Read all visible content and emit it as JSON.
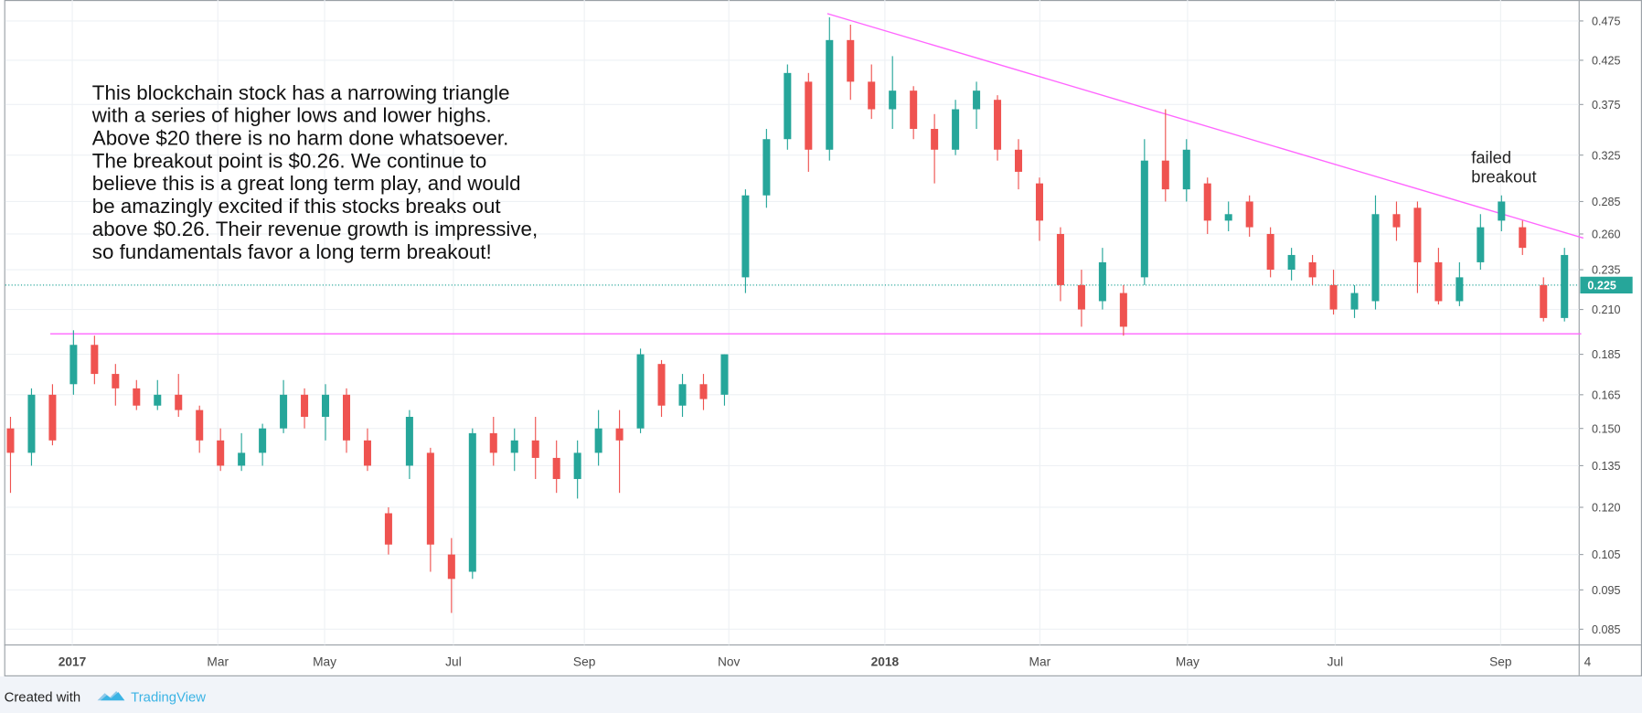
{
  "chart_data": {
    "type": "candlestick",
    "log_scale": true,
    "grid": true,
    "up_color": "#26a69a",
    "down_color": "#ef5350",
    "line_color": "#ff66ff",
    "ylim": [
      0.0813,
      0.504
    ],
    "yticks": [
      0.475,
      0.425,
      0.375,
      0.325,
      0.285,
      {
        "value": 0.26,
        "label": "0.260"
      },
      0.235,
      {
        "value": 0.21,
        "label": "0.210"
      },
      0.185,
      0.165,
      {
        "value": 0.15,
        "label": "0.150"
      },
      0.135,
      {
        "value": 0.12,
        "label": "0.120"
      },
      0.105,
      0.095,
      0.085
    ],
    "x_labels": [
      "2017",
      "Mar",
      "May",
      "Jul",
      "Sep",
      "Nov",
      "2018",
      "Mar",
      "May",
      "Jul",
      "Sep",
      "4"
    ],
    "open": [
      0.15,
      0.14,
      0.165,
      0.17,
      0.19,
      0.175,
      0.168,
      0.16,
      0.165,
      0.158,
      0.145,
      0.135,
      0.14,
      0.15,
      0.165,
      0.155,
      0.165,
      0.145,
      0.118,
      0.135,
      0.14,
      0.105,
      0.1,
      0.148,
      0.14,
      0.145,
      0.138,
      0.13,
      0.14,
      0.15,
      0.15,
      0.18,
      0.16,
      0.17,
      0.165,
      0.23,
      0.29,
      0.34,
      0.4,
      0.33,
      0.45,
      0.4,
      0.37,
      0.39,
      0.35,
      0.33,
      0.37,
      0.38,
      0.33,
      0.3,
      0.26,
      0.225,
      0.215,
      0.22,
      0.23,
      0.32,
      0.295,
      0.3,
      0.27,
      0.285,
      0.26,
      0.235,
      0.24,
      0.225,
      0.21,
      0.215,
      0.275,
      0.28,
      0.24,
      0.215,
      0.24,
      0.27,
      0.265,
      0.225,
      0.205
    ],
    "high": [
      0.155,
      0.168,
      0.17,
      0.198,
      0.195,
      0.18,
      0.172,
      0.172,
      0.175,
      0.16,
      0.15,
      0.148,
      0.152,
      0.172,
      0.168,
      0.17,
      0.168,
      0.15,
      0.12,
      0.158,
      0.142,
      0.11,
      0.15,
      0.155,
      0.15,
      0.155,
      0.145,
      0.145,
      0.158,
      0.158,
      0.188,
      0.182,
      0.175,
      0.175,
      0.185,
      0.295,
      0.35,
      0.42,
      0.41,
      0.48,
      0.47,
      0.42,
      0.43,
      0.395,
      0.365,
      0.38,
      0.4,
      0.385,
      0.34,
      0.305,
      0.265,
      0.235,
      0.25,
      0.225,
      0.34,
      0.37,
      0.34,
      0.305,
      0.285,
      0.29,
      0.265,
      0.25,
      0.245,
      0.235,
      0.225,
      0.29,
      0.285,
      0.285,
      0.25,
      0.24,
      0.275,
      0.29,
      0.27,
      0.23,
      0.25
    ],
    "low": [
      0.125,
      0.135,
      0.143,
      0.165,
      0.17,
      0.16,
      0.158,
      0.158,
      0.155,
      0.14,
      0.133,
      0.133,
      0.135,
      0.148,
      0.15,
      0.145,
      0.14,
      0.133,
      0.105,
      0.13,
      0.1,
      0.089,
      0.098,
      0.135,
      0.133,
      0.13,
      0.125,
      0.123,
      0.135,
      0.125,
      0.148,
      0.155,
      0.155,
      0.158,
      0.16,
      0.22,
      0.28,
      0.33,
      0.31,
      0.32,
      0.38,
      0.36,
      0.35,
      0.34,
      0.3,
      0.325,
      0.35,
      0.32,
      0.295,
      0.255,
      0.215,
      0.2,
      0.21,
      0.195,
      0.225,
      0.285,
      0.285,
      0.26,
      0.262,
      0.258,
      0.23,
      0.228,
      0.225,
      0.207,
      0.205,
      0.21,
      0.255,
      0.22,
      0.213,
      0.212,
      0.235,
      0.262,
      0.245,
      0.203,
      0.203
    ],
    "close": [
      0.14,
      0.165,
      0.145,
      0.19,
      0.175,
      0.168,
      0.16,
      0.165,
      0.158,
      0.145,
      0.135,
      0.14,
      0.15,
      0.165,
      0.155,
      0.165,
      0.145,
      0.135,
      0.108,
      0.155,
      0.108,
      0.098,
      0.148,
      0.14,
      0.145,
      0.138,
      0.13,
      0.14,
      0.15,
      0.145,
      0.185,
      0.16,
      0.17,
      0.163,
      0.185,
      0.29,
      0.34,
      0.41,
      0.33,
      0.45,
      0.4,
      0.37,
      0.39,
      0.35,
      0.33,
      0.37,
      0.39,
      0.33,
      0.31,
      0.27,
      0.225,
      0.21,
      0.24,
      0.2,
      0.32,
      0.295,
      0.33,
      0.27,
      0.275,
      0.265,
      0.235,
      0.245,
      0.23,
      0.21,
      0.22,
      0.275,
      0.265,
      0.24,
      0.215,
      0.23,
      0.265,
      0.285,
      0.25,
      0.205,
      0.245
    ],
    "last_price": 0.225,
    "support": 0.196,
    "resistance": [
      0.485,
      0.257
    ],
    "annotation": [
      "This blockchain stock has a narrowing triangle",
      "with a series of higher lows and lower highs.",
      "Above $20 there is no harm done whatsoever.",
      "The breakout point is $0.26. We continue to",
      "believe this is a great long term play, and would",
      "be amazingly excited if this stocks breaks out",
      "above $0.26. Their revenue growth is impressive,",
      "so fundamentals favor a long term breakout!"
    ],
    "callout": [
      "failed",
      "breakout"
    ]
  },
  "footer": {
    "prefix": "Created with",
    "brand": "TradingView"
  }
}
